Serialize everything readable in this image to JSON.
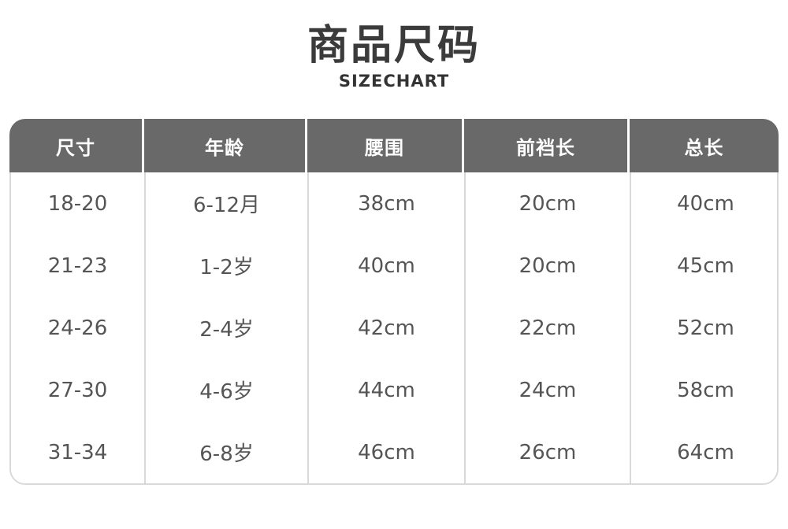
{
  "page": {
    "title": "商品尺码",
    "subtitle": "SIZECHART"
  },
  "colors": {
    "header_bg": "#696969",
    "header_text": "#ffffff",
    "body_text": "#555555",
    "border": "#d9d9d9",
    "title_text": "#3b3b3b"
  },
  "chart_data": {
    "type": "table",
    "title": "商品尺码",
    "subtitle": "SIZECHART",
    "headers": [
      "尺寸",
      "年龄",
      "腰围",
      "前裆长",
      "总长"
    ],
    "rows": [
      [
        "18-20",
        "6-12月",
        "38cm",
        "20cm",
        "40cm"
      ],
      [
        "21-23",
        "1-2岁",
        "40cm",
        "20cm",
        "45cm"
      ],
      [
        "24-26",
        "2-4岁",
        "42cm",
        "22cm",
        "52cm"
      ],
      [
        "27-30",
        "4-6岁",
        "44cm",
        "24cm",
        "58cm"
      ],
      [
        "31-34",
        "6-8岁",
        "46cm",
        "26cm",
        "64cm"
      ]
    ]
  }
}
